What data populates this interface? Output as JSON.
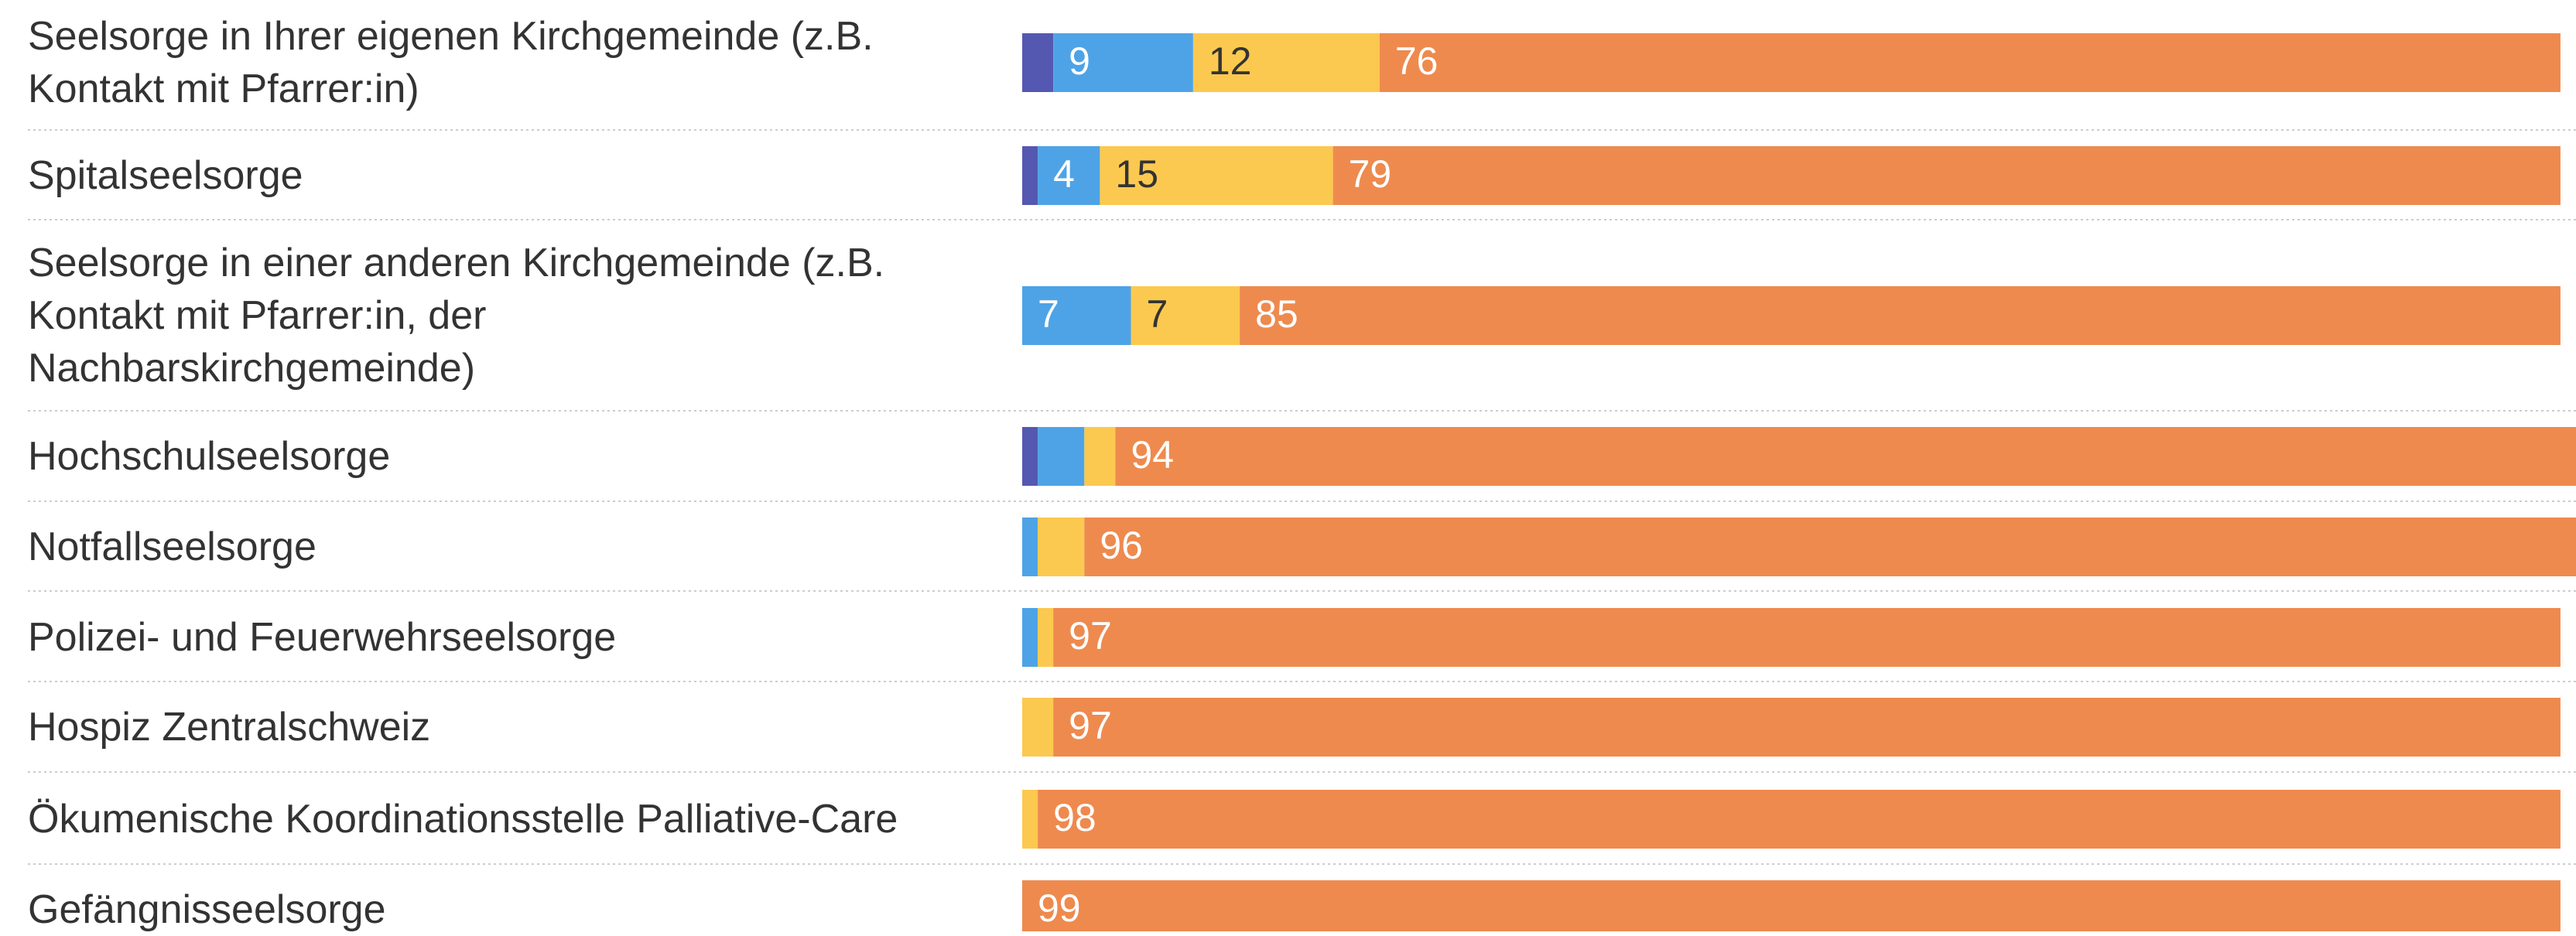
{
  "chart_data": {
    "type": "stacked-bar-horizontal",
    "categories": [
      "Seelsorge in Ihrer eigenen Kirchgemeinde (z.B.\nKontakt mit Pfarrer:in)",
      "Spitalseelsorge",
      "Seelsorge in einer anderen Kirchgemeinde (z.B.\nKontakt mit Pfarrer:in, der\nNachbarskirchgemeinde)",
      "Hochschulseelsorge",
      "Notfallseelsorge",
      "Polizei- und Feuerwehrseelsorge",
      "Hospiz Zentralschweiz",
      "Ökumenische Koordinationsstelle Palliative-Care",
      "Gefängnisseelsorge"
    ],
    "series": [
      {
        "color": "#5558b0",
        "label_color": "#ffffff",
        "values": [
          2,
          1,
          0,
          1,
          0,
          0,
          0,
          0,
          0
        ]
      },
      {
        "color": "#4ea3e6",
        "label_color": "#ffffff",
        "values": [
          9,
          4,
          7,
          3,
          1,
          1,
          0,
          0,
          0
        ]
      },
      {
        "color": "#fbc94f",
        "label_color": "#333333",
        "values": [
          12,
          15,
          7,
          2,
          3,
          1,
          2,
          1,
          0
        ]
      },
      {
        "color": "#ee8a4e",
        "label_color": "#ffffff",
        "values": [
          76,
          79,
          85,
          94,
          96,
          97,
          97,
          98,
          99
        ]
      }
    ],
    "xlim": [
      0,
      100
    ]
  }
}
